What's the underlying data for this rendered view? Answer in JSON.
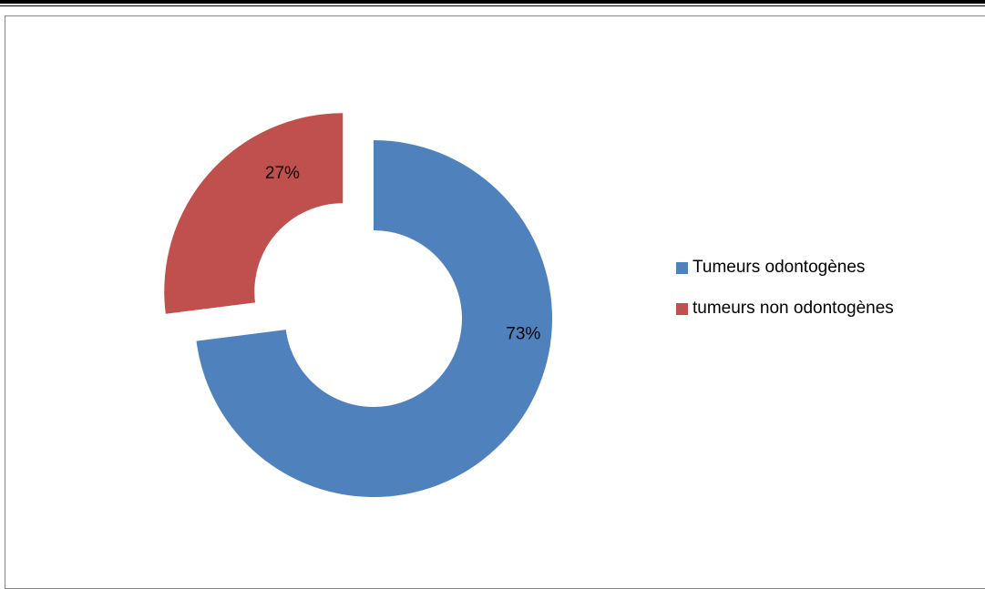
{
  "chart_data": {
    "type": "pie",
    "variant": "donut",
    "exploded": true,
    "legend_position": "right",
    "series": [
      {
        "name": "Tumeurs odontogènes",
        "value": 73,
        "label": "73%",
        "color": "#4f81bd"
      },
      {
        "name": "tumeurs non odontogènes",
        "value": 27,
        "label": "27%",
        "color": "#c0504d"
      }
    ]
  },
  "page": {
    "border_color": "#000000",
    "frame_color": "#868686"
  }
}
